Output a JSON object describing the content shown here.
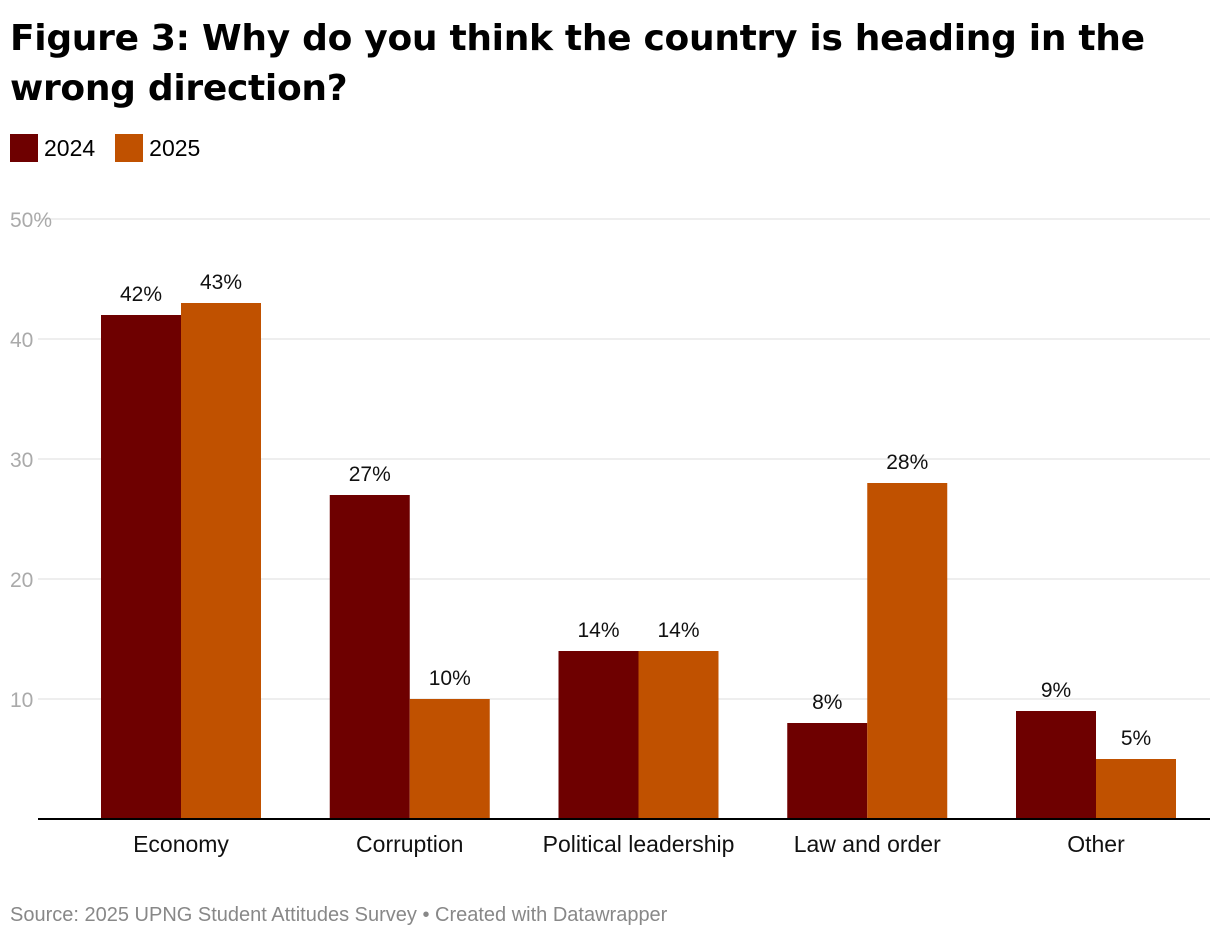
{
  "colors": {
    "series_2024": "#6e0000",
    "series_2025": "#c05100",
    "grid": "#dddddd",
    "tick_text": "#aaaaaa",
    "axis": "#000000"
  },
  "chart_data": {
    "type": "bar",
    "title": "Figure 3: Why do you think the country is heading in the wrong direction?",
    "categories": [
      "Economy",
      "Corruption",
      "Political leadership",
      "Law and order",
      "Other"
    ],
    "series": [
      {
        "name": "2024",
        "values": [
          42,
          27,
          14,
          8,
          9
        ],
        "labels": [
          "42%",
          "27%",
          "14%",
          "8%",
          "9%"
        ]
      },
      {
        "name": "2025",
        "values": [
          43,
          10,
          14,
          28,
          5
        ],
        "labels": [
          "43%",
          "10%",
          "14%",
          "28%",
          "5%"
        ]
      }
    ],
    "ylim": [
      0,
      50
    ],
    "yticks": [
      10,
      20,
      30,
      40,
      50
    ],
    "ytick_labels": [
      "10",
      "20",
      "30",
      "40",
      "50%"
    ],
    "legend_position": "top-left",
    "grid": true,
    "xlabel": "",
    "ylabel": ""
  },
  "footer": {
    "source": "Source: 2025 UPNG Student Attitudes Survey • Created with Datawrapper"
  }
}
